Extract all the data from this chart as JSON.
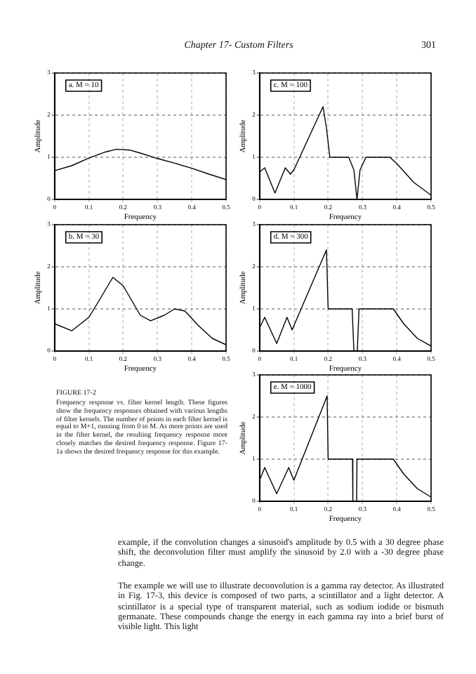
{
  "chart_data": [
    {
      "type": "line",
      "title": "a. M = 10",
      "xlabel": "Frequency",
      "ylabel": "Amplitude",
      "xlim": [
        0,
        0.5
      ],
      "xticks": [
        0,
        0.1,
        0.2,
        0.3,
        0.4,
        0.5
      ],
      "ylim": [
        0,
        3
      ],
      "yticks": [
        0,
        1,
        2,
        3
      ],
      "grid": true,
      "legend": false,
      "marker": "none",
      "annotations": [
        "Chapter 17- Custom Filters",
        "301"
      ],
      "series": [
        {
          "color": "#000000",
          "x": [
            0,
            0.05,
            0.1,
            0.15,
            0.18,
            0.22,
            0.25,
            0.3,
            0.35,
            0.4,
            0.45,
            0.5
          ],
          "values": [
            0.68,
            0.8,
            0.98,
            1.13,
            1.19,
            1.17,
            1.1,
            0.97,
            0.86,
            0.74,
            0.6,
            0.47
          ]
        }
      ]
    },
    {
      "type": "line",
      "title": "c. M = 100",
      "xlabel": "Frequency",
      "ylabel": "Amplitude",
      "xlim": [
        0,
        0.5
      ],
      "xticks": [
        0,
        0.1,
        0.2,
        0.3,
        0.4,
        0.5
      ],
      "ylim": [
        0,
        3
      ],
      "yticks": [
        0,
        1,
        2,
        3
      ],
      "grid": true,
      "legend": false,
      "marker": "none",
      "series": [
        {
          "color": "#000000",
          "x": [
            0,
            0.015,
            0.045,
            0.075,
            0.09,
            0.1,
            0.185,
            0.195,
            0.205,
            0.26,
            0.275,
            0.284,
            0.293,
            0.31,
            0.38,
            0.4,
            0.45,
            0.5
          ],
          "values": [
            0.65,
            0.75,
            0.15,
            0.75,
            0.6,
            0.7,
            2.2,
            1.7,
            1.0,
            1.0,
            0.7,
            0.0,
            0.7,
            1.0,
            1.0,
            0.85,
            0.4,
            0.1
          ]
        }
      ]
    },
    {
      "type": "line",
      "title": "b. M = 30",
      "xlabel": "Frequency",
      "ylabel": "Amplitude",
      "xlim": [
        0,
        0.5
      ],
      "xticks": [
        0,
        0.1,
        0.2,
        0.3,
        0.4,
        0.5
      ],
      "ylim": [
        0,
        3
      ],
      "yticks": [
        0,
        1,
        2,
        3
      ],
      "grid": true,
      "legend": false,
      "marker": "none",
      "series": [
        {
          "color": "#000000",
          "x": [
            0,
            0.05,
            0.1,
            0.13,
            0.17,
            0.2,
            0.25,
            0.28,
            0.32,
            0.35,
            0.38,
            0.42,
            0.46,
            0.5
          ],
          "values": [
            0.65,
            0.48,
            0.8,
            1.2,
            1.75,
            1.55,
            0.85,
            0.72,
            0.85,
            1.0,
            0.95,
            0.6,
            0.3,
            0.15
          ]
        }
      ]
    },
    {
      "type": "line",
      "title": "d. M = 300",
      "xlabel": "Frequency",
      "ylabel": "Amplitude",
      "xlim": [
        0,
        0.5
      ],
      "xticks": [
        0,
        0.1,
        0.2,
        0.3,
        0.4,
        0.5
      ],
      "ylim": [
        0,
        3
      ],
      "yticks": [
        0,
        1,
        2,
        3
      ],
      "grid": true,
      "legend": false,
      "marker": "none",
      "series": [
        {
          "color": "#000000",
          "x": [
            0,
            0.015,
            0.05,
            0.08,
            0.095,
            0.1,
            0.195,
            0.2,
            0.27,
            0.275,
            0.285,
            0.29,
            0.39,
            0.42,
            0.46,
            0.5
          ],
          "values": [
            0.55,
            0.8,
            0.18,
            0.8,
            0.5,
            0.6,
            2.4,
            1.0,
            1.0,
            0.0,
            0.0,
            1.0,
            1.0,
            0.65,
            0.3,
            0.12
          ]
        }
      ]
    },
    {
      "type": "line",
      "title": "e. M = 1000",
      "xlabel": "Frequency",
      "ylabel": "Amplitude",
      "xlim": [
        0,
        0.5
      ],
      "xticks": [
        0,
        0.1,
        0.2,
        0.3,
        0.4,
        0.5
      ],
      "ylim": [
        0,
        3
      ],
      "yticks": [
        0,
        1,
        2,
        3
      ],
      "grid": true,
      "legend": false,
      "marker": "none",
      "annotations": [
        "FIGURE 17-2",
        "Frequency response vs. filter kernel length. These figures show the frequency responses obtained with various lengths of filter kernels. The number of points in each filter kernel is equal to M+1, running from 0 to M. As more points are used in the filter kernel, the resulting frequency response more closely matches the desired frequency response. Figure 17-1a shows the desired frequency response for this example.",
        "example, if the convolution changes a sinusoid's amplitude by 0.5 with a 30 degree phase shift, the deconvolution filter must amplify the sinusoid by 2.0 with a -30 degree phase change.",
        "The example we will use to illustrate deconvolution is a gamma ray detector. As illustrated in Fig. 17-3, this device is composed of two parts, a scintillator and a light detector. A scintillator is a special type of transparent material, such as sodium iodide or bismuth germanate. These compounds change the energy in each gamma ray into a brief burst of visible light. This light"
      ],
      "series": [
        {
          "color": "#000000",
          "x": [
            0,
            0.015,
            0.05,
            0.085,
            0.1,
            0.197,
            0.2,
            0.271,
            0.272,
            0.283,
            0.284,
            0.39,
            0.42,
            0.46,
            0.5
          ],
          "values": [
            0.5,
            0.8,
            0.18,
            0.8,
            0.5,
            2.5,
            1.0,
            1.0,
            0.0,
            0.0,
            1.0,
            1.0,
            0.65,
            0.3,
            0.1
          ]
        }
      ]
    }
  ]
}
